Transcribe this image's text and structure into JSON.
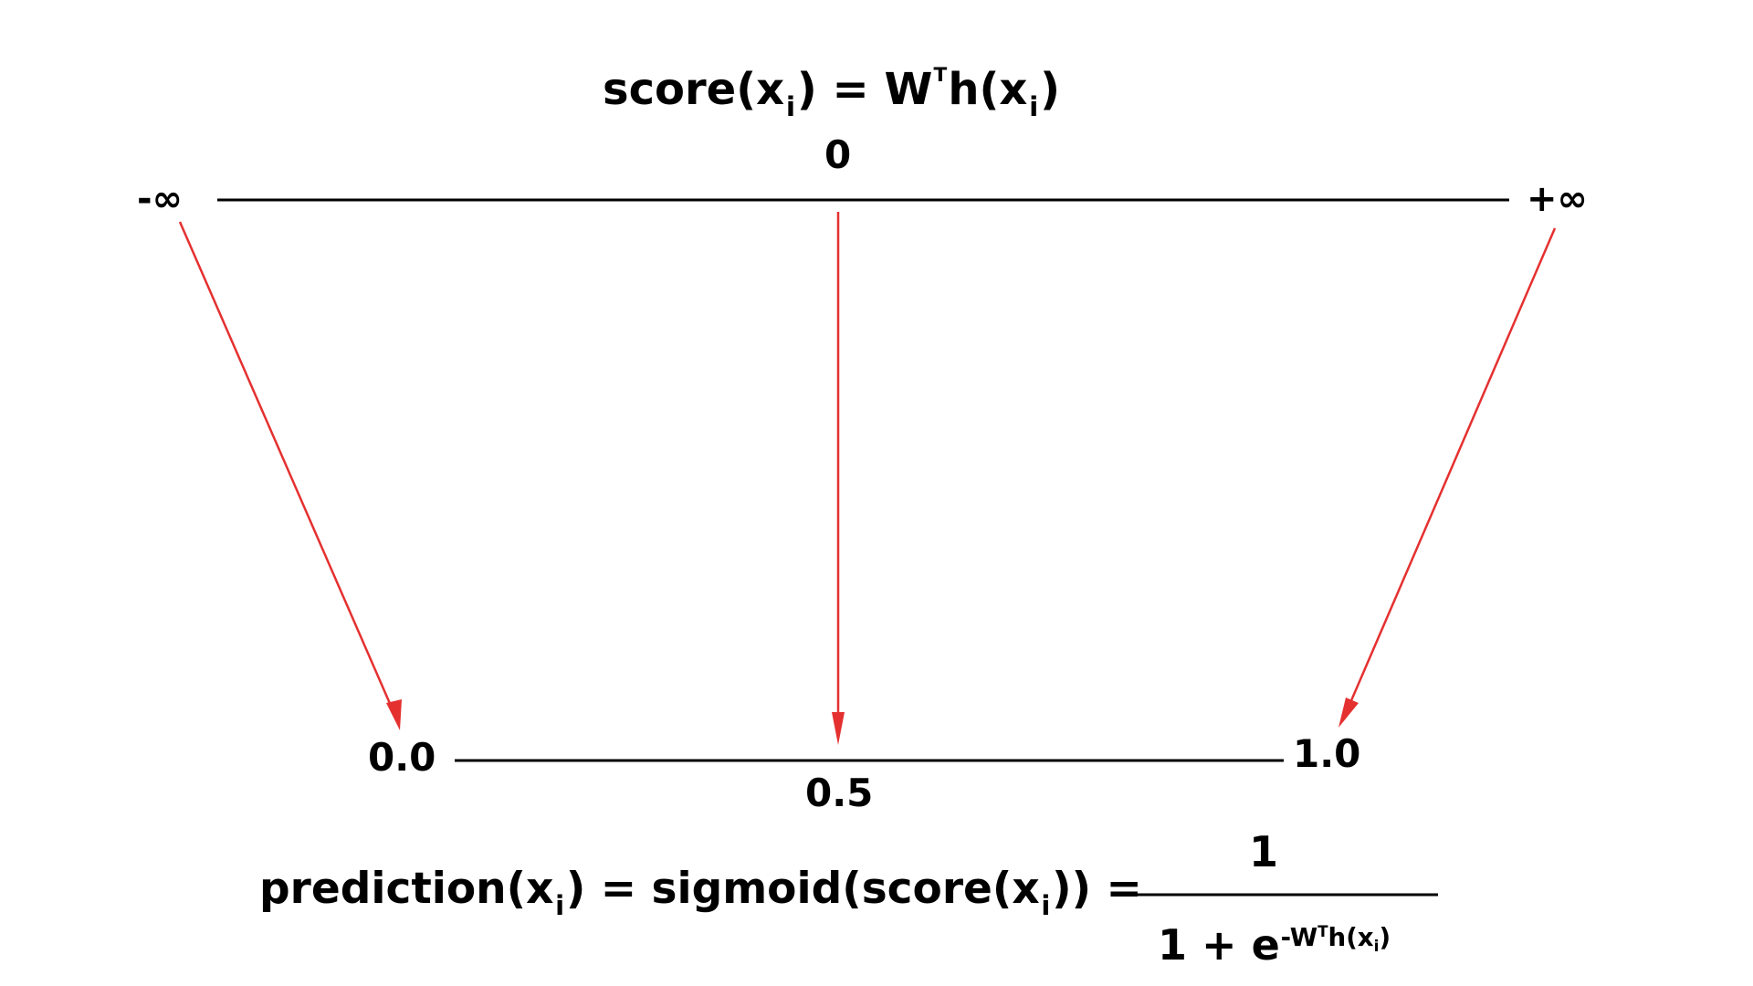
{
  "score_equation": {
    "lhs_fn": "score(x",
    "lhs_sub": "i",
    "mid": ") = W",
    "sup": "T",
    "h": "h(x",
    "rhs_sub": "i",
    "close": ")"
  },
  "score_axis": {
    "left_label": "-∞",
    "center_label": "0",
    "right_label": "+∞"
  },
  "prob_axis": {
    "left_label": "0.0",
    "center_label": "0.5",
    "right_label": "1.0"
  },
  "prediction_equation": {
    "lhs": "prediction(x",
    "lhs_sub": "i",
    "mid": ") = sigmoid(score(x",
    "mid_sub": "i",
    "tail": ")) =",
    "numerator": "1",
    "denominator_base": "1 + e",
    "exponent": "-W",
    "exponent_sup": "T",
    "exponent_tail": "h(x",
    "exponent_sub": "i",
    "exponent_close": ")"
  },
  "colors": {
    "axis": "#000000",
    "arrow": "#e53030",
    "text": "#000000"
  }
}
